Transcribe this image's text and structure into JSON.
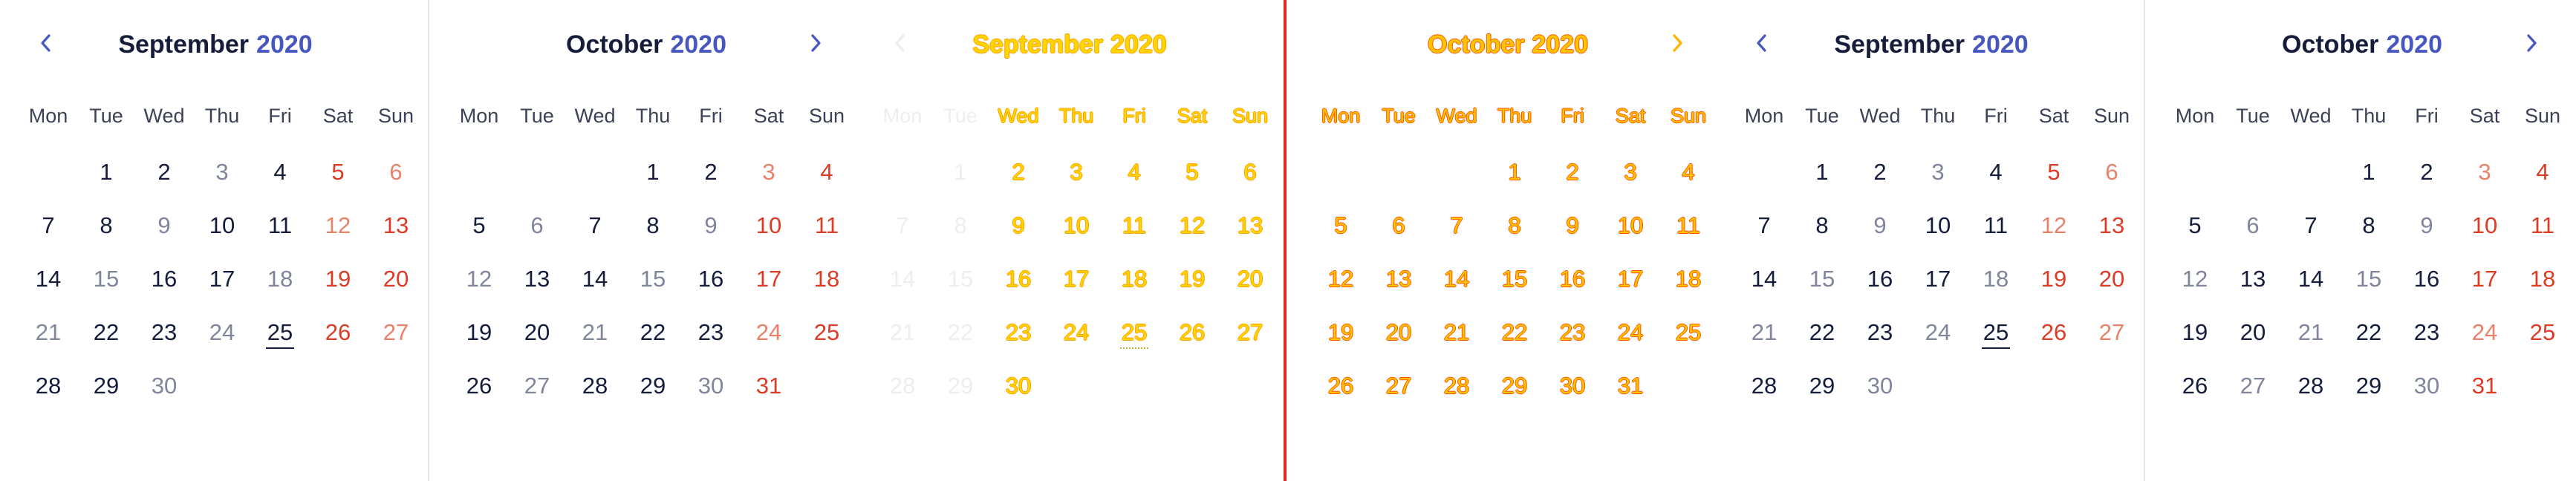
{
  "weekdays": [
    "Mon",
    "Tue",
    "Wed",
    "Thu",
    "Fri",
    "Sat",
    "Sun"
  ],
  "panels": [
    {
      "month": "September",
      "year": "2020",
      "offset": 1,
      "days": 30,
      "today": 25,
      "muted": [
        3,
        9,
        15,
        18,
        21,
        24,
        30
      ],
      "sat_light": [
        6,
        12,
        27
      ],
      "sun_red": [
        5,
        13,
        19,
        20,
        26
      ],
      "nav": "prev",
      "style": "normal"
    },
    {
      "month": "October",
      "year": "2020",
      "offset": 3,
      "days": 31,
      "today": null,
      "muted": [
        6,
        9,
        12,
        15,
        18,
        21,
        27,
        30
      ],
      "sat_light": [
        3,
        24
      ],
      "sun_red": [
        4,
        10,
        11,
        17,
        18,
        25,
        31
      ],
      "nav": "next",
      "style": "normal"
    },
    {
      "month": "September",
      "year": "2020",
      "offset": 1,
      "days": 30,
      "today": 25,
      "muted": [],
      "sat_light": [],
      "sun_red": [],
      "nav": "prev",
      "style": "ghost-fade"
    },
    {
      "month": "October",
      "year": "2020",
      "offset": 3,
      "days": 31,
      "today": null,
      "muted": [],
      "sat_light": [],
      "sun_red": [],
      "nav": "next",
      "style": "ghost-hot"
    },
    {
      "month": "September",
      "year": "2020",
      "offset": 1,
      "days": 30,
      "today": 25,
      "muted": [
        3,
        9,
        15,
        18,
        21,
        24,
        30
      ],
      "sat_light": [
        6,
        12,
        27
      ],
      "sun_red": [
        5,
        13,
        19,
        20,
        26
      ],
      "nav": "prev",
      "style": "normal"
    },
    {
      "month": "October",
      "year": "2020",
      "offset": 3,
      "days": 31,
      "today": null,
      "muted": [
        6,
        9,
        12,
        15,
        18,
        21,
        27,
        30
      ],
      "sat_light": [
        3,
        24
      ],
      "sun_red": [
        4,
        10,
        11,
        17,
        18,
        25,
        31
      ],
      "nav": "next",
      "style": "normal"
    }
  ],
  "colors": {
    "title": "#161d3b",
    "year": "#4658c0",
    "weekend_red": "#dc3c26",
    "weekend_light": "#e8826b",
    "muted": "#80869a",
    "divider_red": "#e02a22"
  },
  "icons": {
    "prev": "chevron-left-icon",
    "next": "chevron-right-icon"
  }
}
